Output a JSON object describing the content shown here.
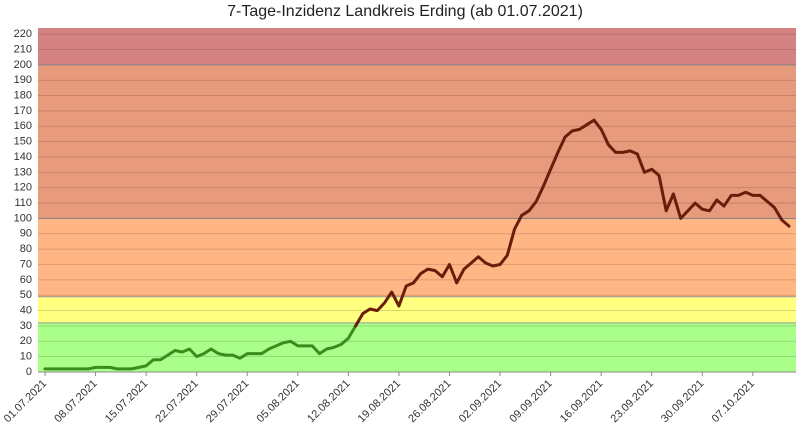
{
  "chart_data": {
    "type": "line",
    "title": "7-Tage-Inzidenz Landkreis Erding (ab 01.07.2021)",
    "categories": [
      "01.07.2021",
      null,
      null,
      null,
      null,
      null,
      null,
      "08.07.2021",
      null,
      null,
      null,
      null,
      null,
      null,
      "15.07.2021",
      null,
      null,
      null,
      null,
      null,
      null,
      "22.07.2021",
      null,
      null,
      null,
      null,
      null,
      null,
      "29.07.2021",
      null,
      null,
      null,
      null,
      null,
      null,
      "05.08.2021",
      null,
      null,
      null,
      null,
      null,
      null,
      "12.08.2021",
      null,
      null,
      null,
      null,
      null,
      null,
      "19.08.2021",
      null,
      null,
      null,
      null,
      null,
      null,
      "26.08.2021",
      null,
      null,
      null,
      null,
      null,
      null,
      "02.09.2021",
      null,
      null,
      null,
      null,
      null,
      null,
      "09.09.2021",
      null,
      null,
      null,
      null,
      null,
      null,
      "16.09.2021",
      null,
      null,
      null,
      null,
      null,
      null,
      "23.09.2021",
      null,
      null,
      null,
      null,
      null,
      null,
      "30.09.2021",
      null,
      null,
      null,
      null,
      null,
      null,
      "07.10.2021",
      null,
      null,
      null,
      null,
      null
    ],
    "series": [
      {
        "color": "#6b1d0b",
        "low_color": "#3a8c1e",
        "values": [
          2,
          2,
          2,
          2,
          2,
          2,
          2,
          3,
          3,
          3,
          2,
          2,
          2,
          3,
          4,
          8,
          8,
          11,
          14,
          13,
          15,
          10,
          12,
          15,
          12,
          11,
          11,
          9,
          12,
          12,
          12,
          15,
          17,
          19,
          20,
          17,
          17,
          17,
          12,
          15,
          16,
          18,
          22,
          30,
          38,
          41,
          40,
          45,
          52,
          43,
          56,
          58,
          64,
          67,
          66,
          62,
          70,
          58,
          67,
          71,
          75,
          71,
          69,
          70,
          76,
          93,
          102,
          105,
          111,
          121,
          132,
          143,
          153,
          157,
          158,
          161,
          164,
          158,
          148,
          143,
          143,
          144,
          142,
          130,
          132,
          128,
          105,
          116,
          100,
          105,
          110,
          106,
          105,
          112,
          108,
          115,
          115,
          117,
          115,
          115,
          111,
          107,
          99,
          95
        ]
      }
    ],
    "bands": [
      {
        "from": 0,
        "color": "#aaff8a"
      },
      {
        "from": 32,
        "color": "#ffff80"
      },
      {
        "from": 49,
        "color": "#ffb584"
      },
      {
        "from": 100,
        "color": "#e89a7c"
      },
      {
        "from": 200,
        "color": "#d48282"
      }
    ],
    "ylim": [
      0,
      224
    ],
    "yticks": [
      0,
      10,
      20,
      30,
      40,
      50,
      60,
      70,
      80,
      90,
      100,
      110,
      120,
      130,
      140,
      150,
      160,
      170,
      180,
      190,
      200,
      210,
      220
    ],
    "grid": true
  }
}
